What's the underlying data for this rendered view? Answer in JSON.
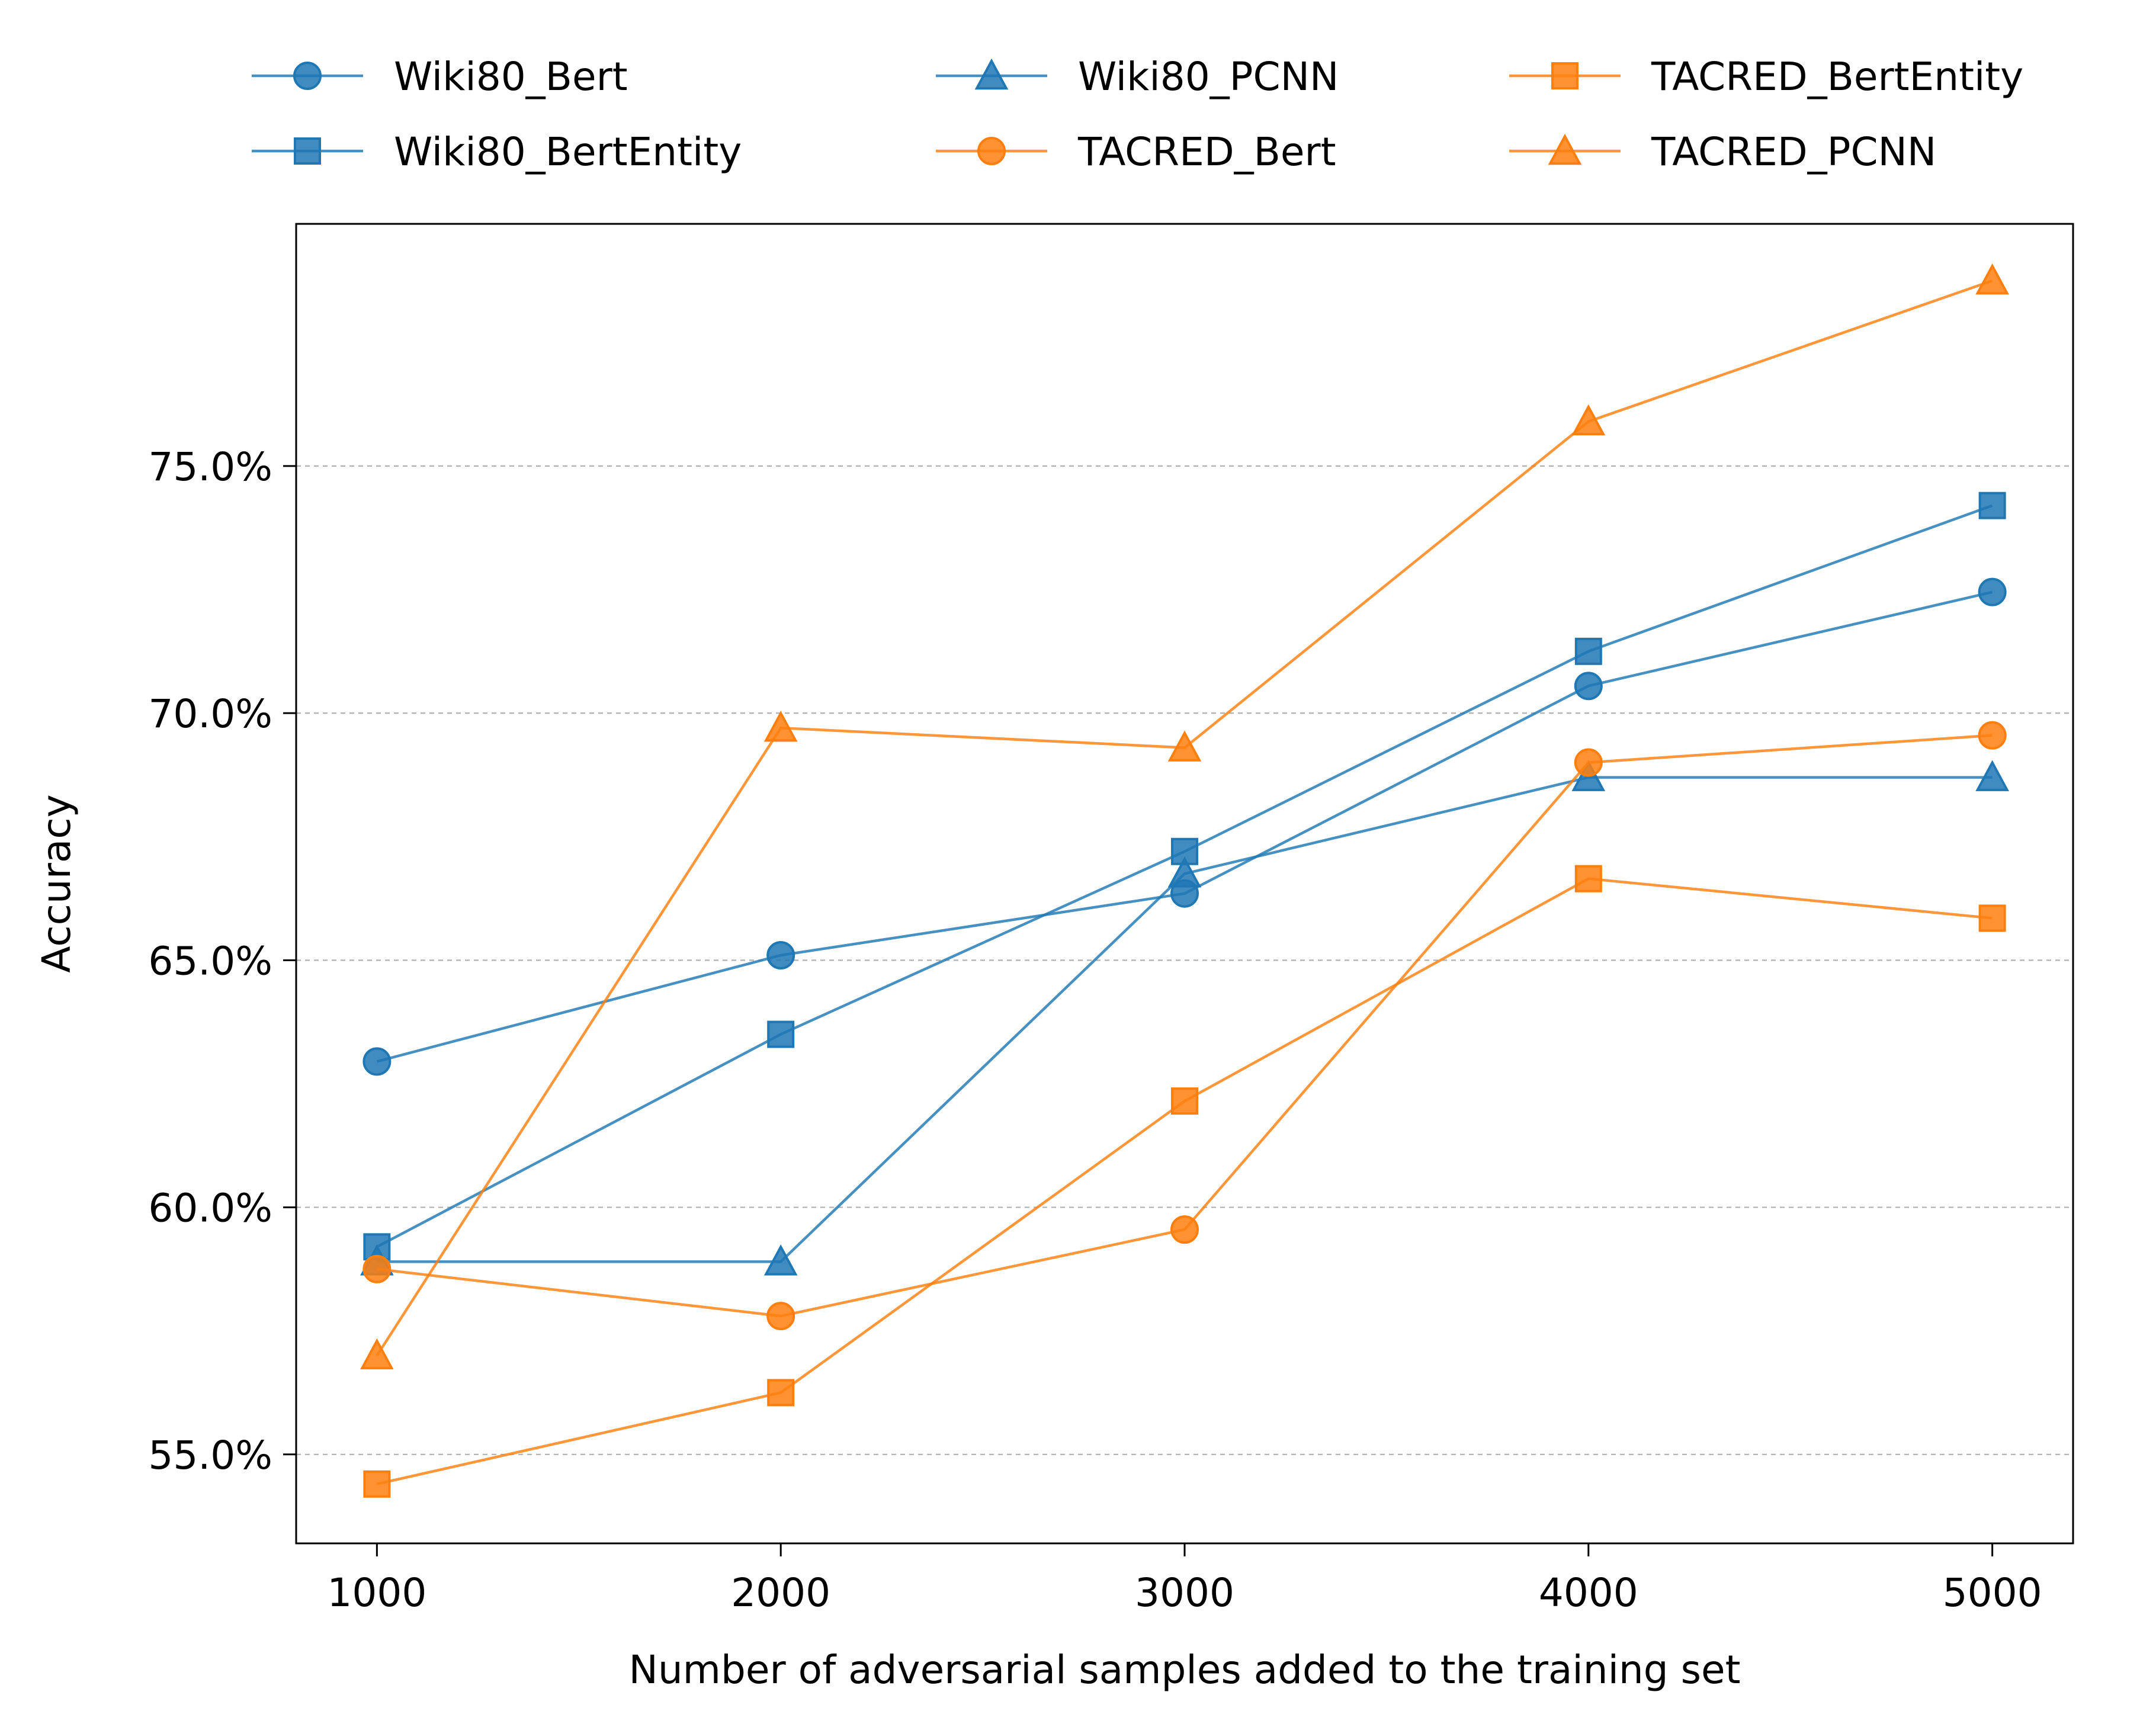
{
  "chart_data": {
    "type": "line",
    "title": "",
    "xlabel": "Number of adversarial samples added to the training set",
    "ylabel": "Accuracy",
    "x": [
      1000,
      2000,
      3000,
      4000,
      5000
    ],
    "xticks": [
      1000,
      2000,
      3000,
      4000,
      5000
    ],
    "xtick_labels": [
      "1000",
      "2000",
      "3000",
      "4000",
      "5000"
    ],
    "xlim": [
      800,
      5200
    ],
    "yticks": [
      55.0,
      60.0,
      65.0,
      70.0,
      75.0
    ],
    "ytick_labels": [
      "55.0%",
      "60.0%",
      "65.0%",
      "70.0%",
      "75.0%"
    ],
    "ylim": [
      53.2,
      79.9
    ],
    "grid": "y dashed",
    "legend_position": "top, outside plot, 3 columns",
    "series": [
      {
        "name": "Wiki80_Bert",
        "color": "#1f77b4",
        "marker": "circle",
        "values": [
          62.95,
          65.1,
          66.35,
          70.55,
          72.45
        ]
      },
      {
        "name": "Wiki80_BertEntity",
        "color": "#1f77b4",
        "marker": "square",
        "values": [
          59.2,
          63.5,
          67.2,
          71.25,
          74.2
        ]
      },
      {
        "name": "Wiki80_PCNN",
        "color": "#1f77b4",
        "marker": "triangle",
        "values": [
          58.9,
          58.9,
          66.75,
          68.7,
          68.7
        ]
      },
      {
        "name": "TACRED_Bert",
        "color": "#ff7f0e",
        "marker": "circle",
        "values": [
          58.75,
          57.8,
          59.55,
          69.0,
          69.55
        ]
      },
      {
        "name": "TACRED_BertEntity",
        "color": "#ff7f0e",
        "marker": "square",
        "values": [
          54.4,
          56.25,
          62.15,
          66.65,
          65.85
        ]
      },
      {
        "name": "TACRED_PCNN",
        "color": "#ff7f0e",
        "marker": "triangle",
        "values": [
          57.0,
          69.7,
          69.3,
          75.9,
          78.75
        ]
      }
    ]
  }
}
